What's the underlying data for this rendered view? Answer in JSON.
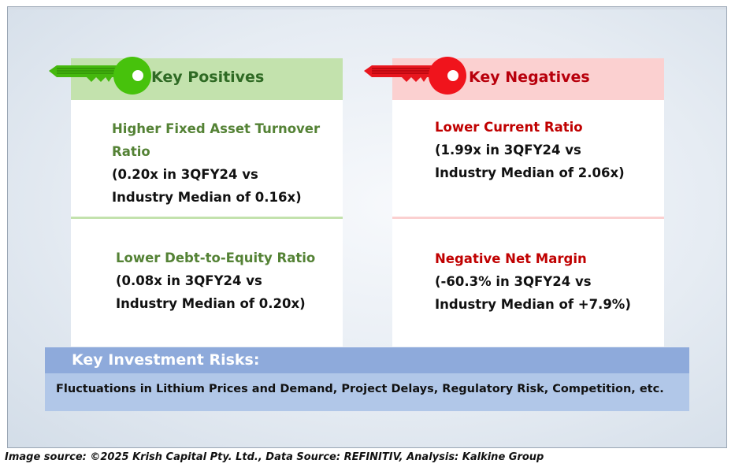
{
  "positives": {
    "header": "Key Positives",
    "items": [
      {
        "title_line1": "Higher Fixed Asset Turnover",
        "title_line2": "Ratio",
        "detail_line1": "(0.20x in 3QFY24 vs",
        "detail_line2": "Industry Median of 0.16x)"
      },
      {
        "title": "Lower Debt-to-Equity Ratio",
        "detail_line1": "(0.08x in 3QFY24 vs",
        "detail_line2": "Industry Median of 0.20x)"
      }
    ],
    "color": "#548235"
  },
  "negatives": {
    "header": "Key Negatives",
    "items": [
      {
        "title": "Lower Current Ratio",
        "detail_line1": "(1.99x in 3QFY24 vs",
        "detail_line2": "Industry Median of 2.06x)"
      },
      {
        "title": "Negative Net Margin",
        "detail_line1": "(-60.3% in 3QFY24 vs",
        "detail_line2": "Industry Median of +7.9%)"
      }
    ],
    "color": "#c00000"
  },
  "risks": {
    "header": "Key Investment Risks:",
    "text": "Fluctuations in Lithium Prices and Demand, Project Delays, Regulatory Risk, Competition, etc."
  },
  "footer": "Image source: ©2025 Krish Capital Pty. Ltd., Data Source: REFINITIV, Analysis: Kalkine Group",
  "icons": {
    "positive": "green-key-icon",
    "negative": "red-key-icon"
  }
}
